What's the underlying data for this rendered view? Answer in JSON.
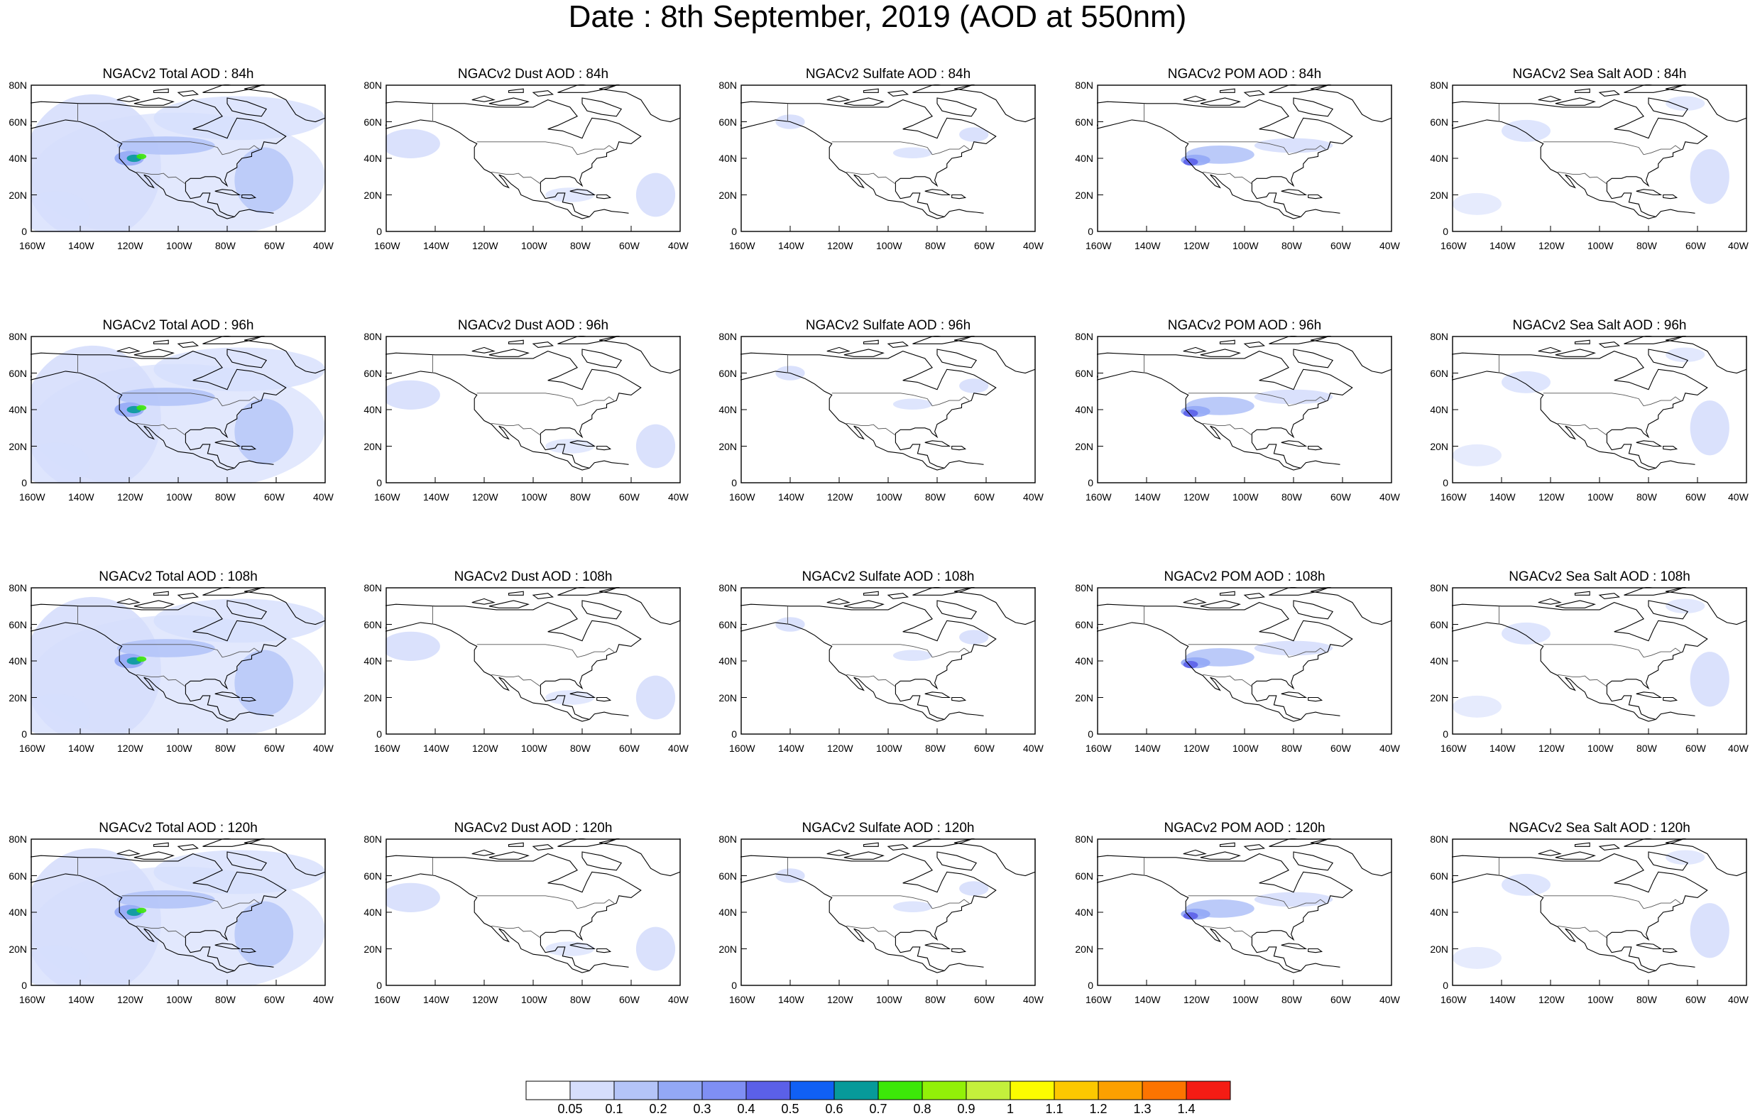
{
  "title": "Date : 8th September, 2019 (AOD at 550nm)",
  "x_ticks": [
    "160W",
    "140W",
    "120W",
    "100W",
    "80W",
    "60W",
    "40W"
  ],
  "y_ticks": [
    "0",
    "20N",
    "40N",
    "60N",
    "80N"
  ],
  "panels": [
    [
      "NGACv2 Total AOD : 84h",
      "NGACv2 Dust AOD : 84h",
      "NGACv2 Sulfate AOD : 84h",
      "NGACv2 POM AOD : 84h",
      "NGACv2 Sea Salt AOD : 84h"
    ],
    [
      "NGACv2 Total AOD : 96h",
      "NGACv2 Dust AOD : 96h",
      "NGACv2 Sulfate AOD : 96h",
      "NGACv2 POM AOD : 96h",
      "NGACv2 Sea Salt AOD : 96h"
    ],
    [
      "NGACv2 Total AOD : 108h",
      "NGACv2 Dust AOD : 108h",
      "NGACv2 Sulfate AOD : 108h",
      "NGACv2 POM AOD : 108h",
      "NGACv2 Sea Salt AOD : 108h"
    ],
    [
      "NGACv2 Total AOD : 120h",
      "NGACv2 Dust AOD : 120h",
      "NGACv2 Sulfate AOD : 120h",
      "NGACv2 POM AOD : 120h",
      "NGACv2 Sea Salt  AOD : 120h"
    ]
  ],
  "colorbar": {
    "labels": [
      "0.05",
      "0.1",
      "0.2",
      "0.3",
      "0.4",
      "0.5",
      "0.6",
      "0.7",
      "0.8",
      "0.9",
      "1",
      "1.1",
      "1.2",
      "1.3",
      "1.4"
    ],
    "colors": [
      "#ffffff",
      "#d6defc",
      "#b4c4f8",
      "#93a8f6",
      "#7f8ff4",
      "#5b60e8",
      "#1060f4",
      "#079a9a",
      "#3ce808",
      "#92f008",
      "#c4f03c",
      "#fcfc00",
      "#fcc800",
      "#fca000",
      "#fc7400",
      "#f41c14"
    ]
  }
}
